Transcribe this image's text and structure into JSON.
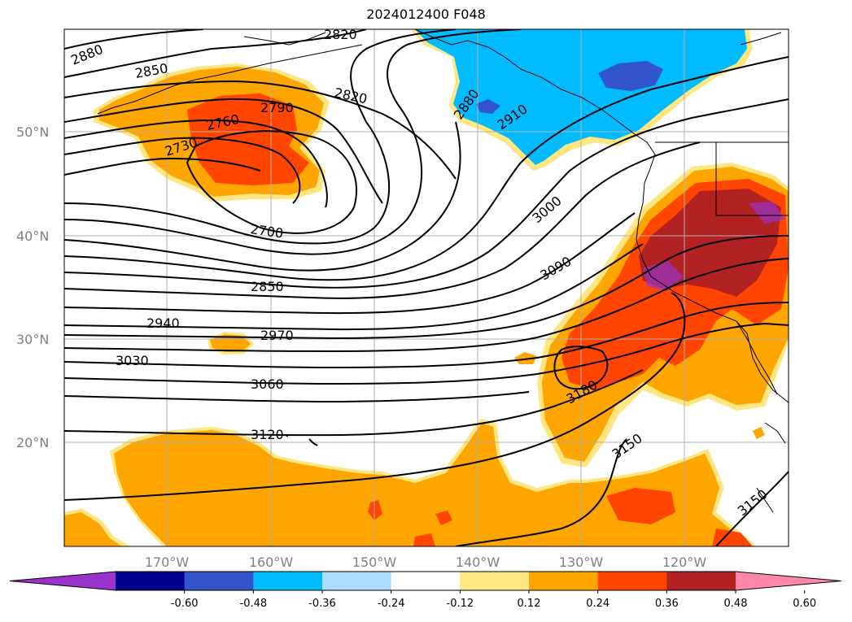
{
  "title": "2024012400 F048",
  "map": {
    "lon_labels": [
      "170°W",
      "160°W",
      "150°W",
      "140°W",
      "130°W",
      "120°W"
    ],
    "lat_labels": [
      "50°N",
      "40°N",
      "30°N",
      "20°N"
    ],
    "contour_labels": [
      "2880",
      "2850",
      "2820",
      "2820",
      "2790",
      "2760",
      "2730",
      "2700",
      "2850",
      "2940",
      "2970",
      "3030",
      "3060",
      "3120",
      "2880",
      "2910",
      "3000",
      "3090",
      "3180",
      "3150",
      "3150"
    ]
  },
  "colorbar": {
    "ticks": [
      "-0.60",
      "-0.48",
      "-0.36",
      "-0.24",
      "-0.12",
      "0.12",
      "0.24",
      "0.36",
      "0.48",
      "0.60"
    ],
    "colors": [
      "#9933cc",
      "#000090",
      "#3355cc",
      "#00bbff",
      "#aaddff",
      "#ffffff",
      "#ffe680",
      "#ffa500",
      "#ff4500",
      "#b22222",
      "#ff88aa"
    ]
  }
}
